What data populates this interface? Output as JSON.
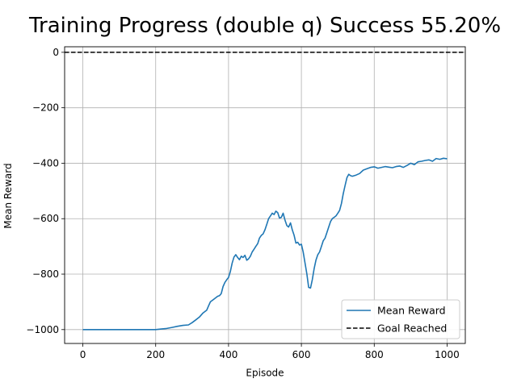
{
  "chart_data": {
    "type": "line",
    "title": "Training Progress (double q) Success 55.20%",
    "xlabel": "Episode",
    "ylabel": "Mean Reward",
    "xlim": [
      -50,
      1050
    ],
    "ylim": [
      -1050,
      20
    ],
    "xticks": [
      0,
      200,
      400,
      600,
      800,
      1000
    ],
    "yticks": [
      0,
      -200,
      -400,
      -600,
      -800,
      -1000
    ],
    "xtick_labels": [
      "0",
      "200",
      "400",
      "600",
      "800",
      "1000"
    ],
    "ytick_labels": [
      "0",
      "−200",
      "−400",
      "−600",
      "−800",
      "−1000"
    ],
    "grid": true,
    "legend_position": "lower-right",
    "series": [
      {
        "name": "Mean Reward",
        "color": "#1f77b4",
        "style": "solid",
        "x": [
          0,
          50,
          100,
          150,
          200,
          215,
          230,
          245,
          260,
          275,
          290,
          300,
          310,
          320,
          330,
          340,
          345,
          350,
          360,
          370,
          375,
          380,
          385,
          390,
          395,
          400,
          405,
          410,
          415,
          420,
          425,
          430,
          435,
          440,
          445,
          450,
          455,
          460,
          465,
          470,
          475,
          480,
          485,
          490,
          495,
          500,
          505,
          510,
          515,
          520,
          525,
          530,
          535,
          540,
          545,
          550,
          555,
          560,
          565,
          570,
          575,
          580,
          585,
          590,
          595,
          600,
          605,
          610,
          615,
          620,
          625,
          630,
          635,
          640,
          645,
          650,
          655,
          660,
          665,
          670,
          675,
          680,
          685,
          690,
          695,
          700,
          705,
          710,
          715,
          720,
          725,
          730,
          735,
          740,
          745,
          750,
          760,
          770,
          780,
          790,
          800,
          810,
          820,
          830,
          840,
          850,
          860,
          870,
          880,
          890,
          900,
          910,
          920,
          930,
          940,
          950,
          960,
          970,
          980,
          990,
          1000
        ],
        "y": [
          -1000,
          -1000,
          -1000,
          -1000,
          -1000,
          -998,
          -996,
          -992,
          -988,
          -985,
          -983,
          -975,
          -965,
          -955,
          -940,
          -930,
          -915,
          -900,
          -890,
          -880,
          -878,
          -870,
          -845,
          -830,
          -820,
          -812,
          -790,
          -760,
          -738,
          -730,
          -740,
          -748,
          -735,
          -740,
          -732,
          -750,
          -745,
          -735,
          -720,
          -710,
          -700,
          -690,
          -670,
          -660,
          -655,
          -640,
          -620,
          -600,
          -590,
          -580,
          -585,
          -573,
          -578,
          -598,
          -595,
          -580,
          -605,
          -625,
          -630,
          -615,
          -640,
          -660,
          -688,
          -685,
          -695,
          -692,
          -720,
          -760,
          -800,
          -848,
          -850,
          -820,
          -780,
          -750,
          -730,
          -720,
          -700,
          -680,
          -670,
          -650,
          -630,
          -610,
          -600,
          -595,
          -590,
          -580,
          -570,
          -545,
          -510,
          -480,
          -452,
          -440,
          -445,
          -447,
          -445,
          -443,
          -437,
          -425,
          -420,
          -415,
          -413,
          -418,
          -415,
          -412,
          -414,
          -416,
          -412,
          -410,
          -415,
          -408,
          -400,
          -405,
          -395,
          -393,
          -390,
          -388,
          -393,
          -383,
          -386,
          -382,
          -384
        ]
      },
      {
        "name": "Goal Reached",
        "color": "#000000",
        "style": "dashed",
        "y_constant": 0
      }
    ]
  }
}
